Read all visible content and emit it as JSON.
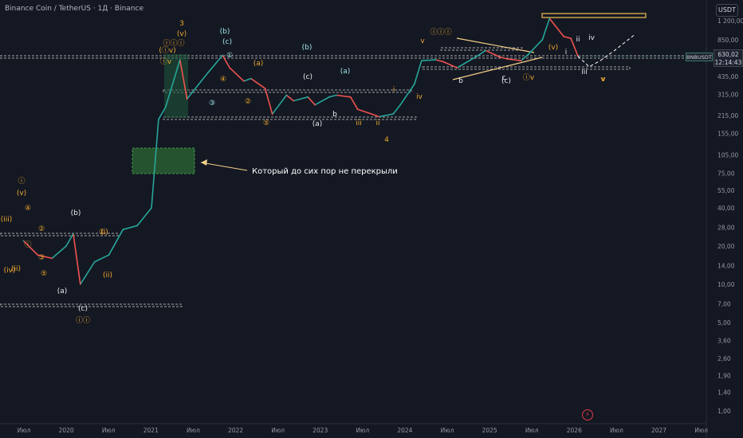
{
  "title": "Binance Coin / TetherUS · 1Д · Binance",
  "currency": "USDT",
  "price_tag": {
    "price": "630,02",
    "time": "12:14:43"
  },
  "symbol_tag": "BNBUSDT",
  "annotation_text": "Который до сих пор не перекрыли",
  "icons": {
    "flash": "flash-icon"
  },
  "colors": {
    "up": "#26a69a",
    "down": "#ef5350",
    "wave_orange": "#f0a830",
    "wave_white": "#e8eaf0",
    "wave_cyan": "#9fe3ea",
    "green_zone": "#2a5e32",
    "dashed_line": "#c8c8c8",
    "gold_zone": "#c9a04a"
  },
  "chart_data": {
    "type": "line",
    "symbol": "BNBUSDT",
    "y_scale": "log",
    "y_ticks": [
      "1 200,00",
      "850,00",
      "435,00",
      "315,00",
      "215,00",
      "155,00",
      "105,00",
      "75,00",
      "55,00",
      "40,00",
      "28,00",
      "20,00",
      "14,00",
      "10,00",
      "7,00",
      "5,00",
      "3,60",
      "2,60",
      "1,90",
      "1,40",
      "1,00"
    ],
    "x_ticks": [
      "Июл",
      "2020",
      "Июл",
      "2021",
      "Июл",
      "2022",
      "Июл",
      "2023",
      "Июл",
      "2024",
      "Июл",
      "2025",
      "Июл",
      "2026",
      "Июл",
      "2027",
      "Июл"
    ],
    "last_price": 630.02,
    "x": [
      "2019-07",
      "2019-09",
      "2019-11",
      "2020-01",
      "2020-02",
      "2020-03",
      "2020-05",
      "2020-07",
      "2020-09",
      "2020-11",
      "2021-01",
      "2021-02",
      "2021-03",
      "2021-05",
      "2021-06",
      "2021-08",
      "2021-09",
      "2021-11",
      "2021-12",
      "2022-02",
      "2022-03",
      "2022-05",
      "2022-06",
      "2022-08",
      "2022-09",
      "2022-11",
      "2022-12",
      "2023-02",
      "2023-03",
      "2023-05",
      "2023-06",
      "2023-08",
      "2023-09",
      "2023-11",
      "2023-12",
      "2024-02",
      "2024-03",
      "2024-05",
      "2024-06",
      "2024-08",
      "2024-09",
      "2024-11",
      "2024-12",
      "2025-02",
      "2025-03",
      "2025-05",
      "2025-06",
      "2025-08",
      "2025-09",
      "2025-11",
      "2025-12",
      "2026-01"
    ],
    "y": [
      22,
      17,
      16,
      20,
      25,
      10,
      15,
      17,
      27,
      29,
      40,
      200,
      250,
      590,
      290,
      400,
      470,
      640,
      510,
      400,
      420,
      350,
      220,
      310,
      280,
      300,
      260,
      300,
      310,
      300,
      240,
      220,
      210,
      220,
      260,
      380,
      580,
      590,
      570,
      510,
      550,
      640,
      700,
      620,
      600,
      580,
      650,
      850,
      1250,
      900,
      870,
      630
    ],
    "projection_y": [
      630,
      520,
      580,
      700,
      920
    ],
    "annotations": [
      "Который до сих пор не перекрыли"
    ],
    "wave_labels": [
      "ⓘ",
      "(v)",
      "(iii)",
      "④",
      "(b)",
      "ⓘ",
      "(ii)",
      "(a)",
      "(c)",
      "ⓘⓘ",
      "②",
      "③",
      "⑤",
      "①",
      "(i)",
      "(iv)",
      "(ii)",
      "ⓘⓘⓘ",
      "3",
      "(v)",
      "(b)",
      "(c)",
      "①",
      "③",
      "②",
      "④",
      "⑤",
      "(a)",
      "(c)",
      "(b)",
      "(a)",
      "b",
      "iii",
      "ii",
      "i",
      "iv",
      "v",
      "4",
      "(a)",
      "b",
      "c",
      "(c)",
      "ⓘⓘⓘ",
      "ⓘv",
      "ii",
      "iii",
      "iv",
      "v",
      "(v)",
      "ⓘv",
      "(ⓘv)",
      "i",
      "v"
    ],
    "grid": false
  }
}
